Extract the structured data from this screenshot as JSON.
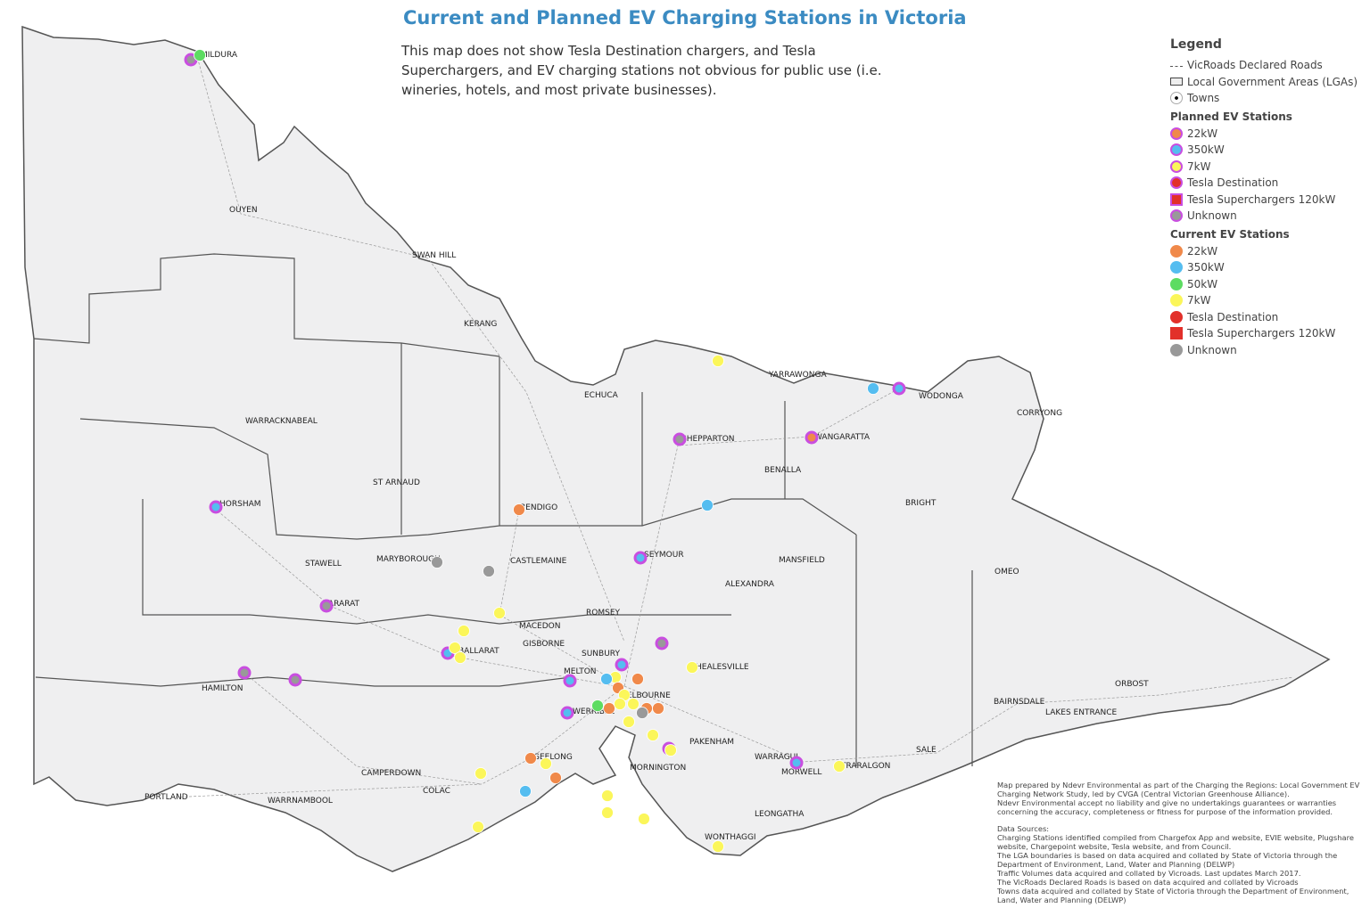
{
  "title": "Current and Planned EV Charging Stations in Victoria",
  "subtitle": "This map does not show Tesla Destination chargers, and Tesla Superchargers, and EV charging stations not obvious for public use (i.e. wineries, hotels, and most private businesses).",
  "colors": {
    "22kW": "#f0894a",
    "350kW": "#55bdf0",
    "50kW": "#5ddc62",
    "7kW": "#fbf65a",
    "Tesla Destination": "#e2302a",
    "Tesla Superchargers 120kW": "#e2302a",
    "Unknown": "#999999",
    "planned_ring": "#c94ee0",
    "land": "#efeff0"
  },
  "legend": {
    "title": "Legend",
    "base": [
      {
        "label": "VicRoads Declared Roads",
        "icon": "dashed-line"
      },
      {
        "label": "Local Government Areas (LGAs)",
        "icon": "rectangle"
      },
      {
        "label": "Towns",
        "icon": "dot-circle"
      }
    ],
    "planned_title": "Planned EV Stations",
    "planned": [
      {
        "label": "22kW",
        "shape": "circle"
      },
      {
        "label": "350kW",
        "shape": "circle"
      },
      {
        "label": "7kW",
        "shape": "circle"
      },
      {
        "label": "Tesla Destination",
        "shape": "circle"
      },
      {
        "label": "Tesla Superchargers 120kW",
        "shape": "square"
      },
      {
        "label": "Unknown",
        "shape": "circle"
      }
    ],
    "current_title": "Current EV Stations",
    "current": [
      {
        "label": "22kW",
        "shape": "circle"
      },
      {
        "label": "350kW",
        "shape": "circle"
      },
      {
        "label": "50kW",
        "shape": "circle"
      },
      {
        "label": "7kW",
        "shape": "circle"
      },
      {
        "label": "Tesla Destination",
        "shape": "circle"
      },
      {
        "label": "Tesla Superchargers 120kW",
        "shape": "square"
      },
      {
        "label": "Unknown",
        "shape": "circle"
      }
    ]
  },
  "towns": [
    "MILDURA",
    "OUYEN",
    "SWAN HILL",
    "KERANG",
    "ECHUCA",
    "YARRAWONGA",
    "WODONGA",
    "CORRYONG",
    "WANGARATTA",
    "SHEPPARTON",
    "BENALLA",
    "WARRACKNABEAL",
    "ST ARNAUD",
    "BENDIGO",
    "HORSHAM",
    "BRIGHT",
    "STAWELL",
    "MARYBOROUGH",
    "CASTLEMAINE",
    "SEYMOUR",
    "MANSFIELD",
    "OMEO",
    "ALEXANDRA",
    "ARARAT",
    "MACEDON",
    "ROMSEY",
    "GISBORNE",
    "BALLARAT",
    "SUNBURY",
    "HEALESVILLE",
    "MELTON",
    "MELBOURNE",
    "HAMILTON",
    "WERRIBEE",
    "ORBOST",
    "BAIRNSDALE",
    "LAKES ENTRANCE",
    "PAKENHAM",
    "GEELONG",
    "WARRAGUL",
    "MORWELL",
    "TRARALGON",
    "SALE",
    "CAMPERDOWN",
    "MORNINGTON",
    "COLAC",
    "PORTLAND",
    "WARRNAMBOOL",
    "LEONGATHA",
    "WONTHAGGI"
  ],
  "stations": [
    {
      "status": "planned",
      "type": "Unknown",
      "near": "MILDURA"
    },
    {
      "status": "current",
      "type": "50kW",
      "near": "MILDURA"
    },
    {
      "status": "planned",
      "type": "350kW",
      "near": "HORSHAM"
    },
    {
      "status": "planned",
      "type": "Unknown",
      "near": "ARARAT"
    },
    {
      "status": "planned",
      "type": "Unknown",
      "near": "HAMILTON"
    },
    {
      "status": "planned",
      "type": "Unknown",
      "near": "HAMILTON"
    },
    {
      "status": "planned",
      "type": "350kW",
      "near": "BALLARAT"
    },
    {
      "status": "planned",
      "type": "Unknown",
      "near": "SHEPPARTON"
    },
    {
      "status": "planned",
      "type": "350kW",
      "near": "SEYMOUR"
    },
    {
      "status": "planned",
      "type": "22kW",
      "near": "WANGARATTA"
    },
    {
      "status": "planned",
      "type": "350kW",
      "near": "WODONGA"
    },
    {
      "status": "current",
      "type": "350kW",
      "near": "WODONGA"
    },
    {
      "status": "planned",
      "type": "350kW",
      "near": "MELTON"
    },
    {
      "status": "planned",
      "type": "350kW",
      "near": "WERRIBEE"
    },
    {
      "status": "planned",
      "type": "Unknown",
      "near": "HEALESVILLE"
    },
    {
      "status": "planned",
      "type": "350kW",
      "near": "MELBOURNE"
    },
    {
      "status": "planned",
      "type": "7kW",
      "near": "PAKENHAM"
    },
    {
      "status": "planned",
      "type": "350kW",
      "near": "MORWELL"
    },
    {
      "status": "current",
      "type": "7kW",
      "near": "YARRAWONGA"
    },
    {
      "status": "current",
      "type": "22kW",
      "near": "BENDIGO"
    },
    {
      "status": "current",
      "type": "350kW",
      "near": "BENALLA"
    },
    {
      "status": "current",
      "type": "Unknown",
      "near": "MARYBOROUGH"
    },
    {
      "status": "current",
      "type": "Unknown",
      "near": "CASTLEMAINE"
    },
    {
      "status": "current",
      "type": "7kW",
      "near": "MACEDON"
    },
    {
      "status": "current",
      "type": "7kW",
      "near": "BALLARAT"
    },
    {
      "status": "current",
      "type": "7kW",
      "near": "BALLARAT"
    },
    {
      "status": "current",
      "type": "7kW",
      "near": "BALLARAT"
    },
    {
      "status": "current",
      "type": "7kW",
      "near": "HEALESVILLE"
    },
    {
      "status": "current",
      "type": "7kW",
      "near": "MELBOURNE"
    },
    {
      "status": "current",
      "type": "350kW",
      "near": "MELBOURNE"
    },
    {
      "status": "current",
      "type": "22kW",
      "near": "MELBOURNE"
    },
    {
      "status": "current",
      "type": "22kW",
      "near": "MELBOURNE"
    },
    {
      "status": "current",
      "type": "7kW",
      "near": "MELBOURNE"
    },
    {
      "status": "current",
      "type": "7kW",
      "near": "MELBOURNE"
    },
    {
      "status": "current",
      "type": "22kW",
      "near": "MELBOURNE"
    },
    {
      "status": "current",
      "type": "22kW",
      "near": "MELBOURNE"
    },
    {
      "status": "current",
      "type": "50kW",
      "near": "WERRIBEE"
    },
    {
      "status": "current",
      "type": "22kW",
      "near": "MELBOURNE"
    },
    {
      "status": "current",
      "type": "7kW",
      "near": "MELBOURNE"
    },
    {
      "status": "current",
      "type": "Unknown",
      "near": "MELBOURNE"
    },
    {
      "status": "current",
      "type": "7kW",
      "near": "MELBOURNE"
    },
    {
      "status": "current",
      "type": "7kW",
      "near": "MELBOURNE"
    },
    {
      "status": "current",
      "type": "7kW",
      "near": "PAKENHAM"
    },
    {
      "status": "current",
      "type": "22kW",
      "near": "GEELONG"
    },
    {
      "status": "current",
      "type": "7kW",
      "near": "GEELONG"
    },
    {
      "status": "current",
      "type": "22kW",
      "near": "GEELONG"
    },
    {
      "status": "current",
      "type": "7kW",
      "near": "COLAC"
    },
    {
      "status": "current",
      "type": "350kW",
      "near": "GEELONG"
    },
    {
      "status": "current",
      "type": "7kW",
      "near": "COLAC"
    },
    {
      "status": "current",
      "type": "7kW",
      "near": "MORNINGTON"
    },
    {
      "status": "current",
      "type": "7kW",
      "near": "MORNINGTON"
    },
    {
      "status": "current",
      "type": "7kW",
      "near": "MORNINGTON"
    },
    {
      "status": "current",
      "type": "7kW",
      "near": "WONTHAGGI"
    },
    {
      "status": "current",
      "type": "7kW",
      "near": "TRARALGON"
    }
  ],
  "notes": {
    "credit": "Map prepared by Ndevr Environmental as part of the Charging the Regions: Local Government EV Charging Network Study, led by CVGA (Central Victorian Greenhouse Alliance).",
    "disclaimer": "Ndevr Environmental accept no liability and give no undertakings guarantees or warranties concerning the accuracy, completeness or fitness for purpose of the information provided.",
    "sources_title": "Data Sources:",
    "sources": [
      "Charging Stations identified compiled from Chargefox App and website, EVIE website, Plugshare website, Chargepoint website, Tesla website, and from Council.",
      "The LGA boundaries is based on data acquired and collated by State of Victoria through the Department of Environment, Land, Water and Planning (DELWP)",
      "Traffic Volumes data acquired and collated by Vicroads. Last updates March 2017.",
      "The VicRoads Declared Roads is based on data acquired and collated by Vicroads",
      "Towns data acquired and collated by State of Victoria through the Department of Environment, Land, Water and Planning (DELWP)"
    ]
  }
}
